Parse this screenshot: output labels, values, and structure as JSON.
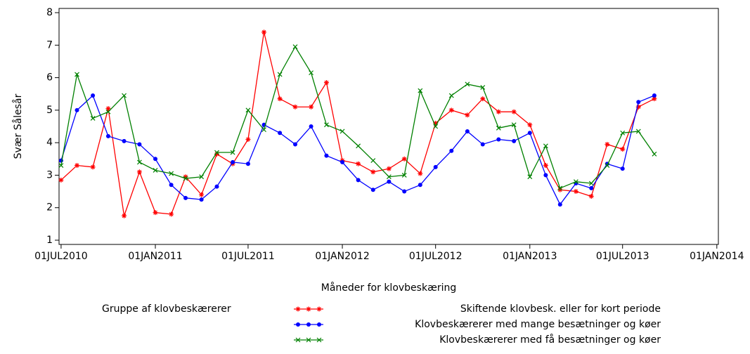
{
  "chart_data": {
    "type": "line",
    "ylabel": "Svær Sålesår",
    "xlabel": "Måneder for klovbeskæring",
    "legend_title": "Gruppe af klovbeskærerer",
    "x": [
      "2010-07-01",
      "2010-08-01",
      "2010-09-01",
      "2010-10-01",
      "2010-11-01",
      "2010-12-01",
      "2011-01-01",
      "2011-02-01",
      "2011-03-01",
      "2011-04-01",
      "2011-05-01",
      "2011-06-01",
      "2011-07-01",
      "2011-08-01",
      "2011-09-01",
      "2011-10-01",
      "2011-11-01",
      "2011-12-01",
      "2012-01-01",
      "2012-02-01",
      "2012-03-01",
      "2012-04-01",
      "2012-05-01",
      "2012-06-01",
      "2012-07-01",
      "2012-08-01",
      "2012-09-01",
      "2012-10-01",
      "2012-11-01",
      "2012-12-01",
      "2013-01-01",
      "2013-02-01",
      "2013-03-01",
      "2013-04-01",
      "2013-05-01",
      "2013-06-01",
      "2013-07-01",
      "2013-08-01",
      "2013-09-01"
    ],
    "series": [
      {
        "name": "Skiftende klovbesk. eller for kort periode",
        "color": "#ff0000",
        "marker": "star",
        "values": [
          2.85,
          3.3,
          3.25,
          5.05,
          1.75,
          3.1,
          1.85,
          1.8,
          2.95,
          2.4,
          3.65,
          3.35,
          4.1,
          7.4,
          5.35,
          5.1,
          5.1,
          5.85,
          3.45,
          3.35,
          3.1,
          3.2,
          3.5,
          3.05,
          4.6,
          5.0,
          4.85,
          5.35,
          4.95,
          4.95,
          4.55,
          3.3,
          2.55,
          2.5,
          2.35,
          3.95,
          3.8,
          5.1,
          5.35
        ]
      },
      {
        "name": "Klovbeskærerer med mange besætninger og køer",
        "color": "#0000ff",
        "marker": "dot",
        "values": [
          3.45,
          5.0,
          5.45,
          4.2,
          4.05,
          3.95,
          3.5,
          2.7,
          2.3,
          2.25,
          2.65,
          3.4,
          3.35,
          4.55,
          4.3,
          3.95,
          4.5,
          3.6,
          3.4,
          2.85,
          2.55,
          2.8,
          2.5,
          2.7,
          3.25,
          3.75,
          4.35,
          3.95,
          4.1,
          4.05,
          4.3,
          3.0,
          2.1,
          2.75,
          2.6,
          3.35,
          3.2,
          5.25,
          5.45
        ]
      },
      {
        "name": "Klovbeskærerer med få besætninger og køer",
        "color": "#008000",
        "marker": "x",
        "values": [
          3.3,
          6.1,
          4.75,
          4.95,
          5.45,
          3.4,
          3.15,
          3.05,
          2.9,
          2.95,
          3.7,
          3.7,
          5.0,
          4.4,
          6.1,
          6.95,
          6.15,
          4.55,
          4.35,
          3.9,
          3.45,
          2.95,
          3.0,
          5.6,
          4.5,
          5.45,
          5.8,
          5.7,
          4.45,
          4.55,
          2.95,
          3.9,
          2.6,
          2.8,
          2.75,
          3.3,
          4.3,
          4.35,
          3.65
        ]
      }
    ],
    "xlim": [
      "2010-06-27",
      "2014-01-04"
    ],
    "xticks": [
      {
        "value": "2010-07-01",
        "label": "01JUL2010"
      },
      {
        "value": "2011-01-01",
        "label": "01JAN2011"
      },
      {
        "value": "2011-07-01",
        "label": "01JUL2011"
      },
      {
        "value": "2012-01-01",
        "label": "01JAN2012"
      },
      {
        "value": "2012-07-01",
        "label": "01JUL2012"
      },
      {
        "value": "2013-01-01",
        "label": "01JAN2013"
      },
      {
        "value": "2013-07-01",
        "label": "01JUL2013"
      },
      {
        "value": "2014-01-01",
        "label": "01JAN2014"
      }
    ],
    "ylim": [
      0.87,
      8.13
    ],
    "yticks": [
      1,
      2,
      3,
      4,
      5,
      6,
      7,
      8
    ]
  }
}
